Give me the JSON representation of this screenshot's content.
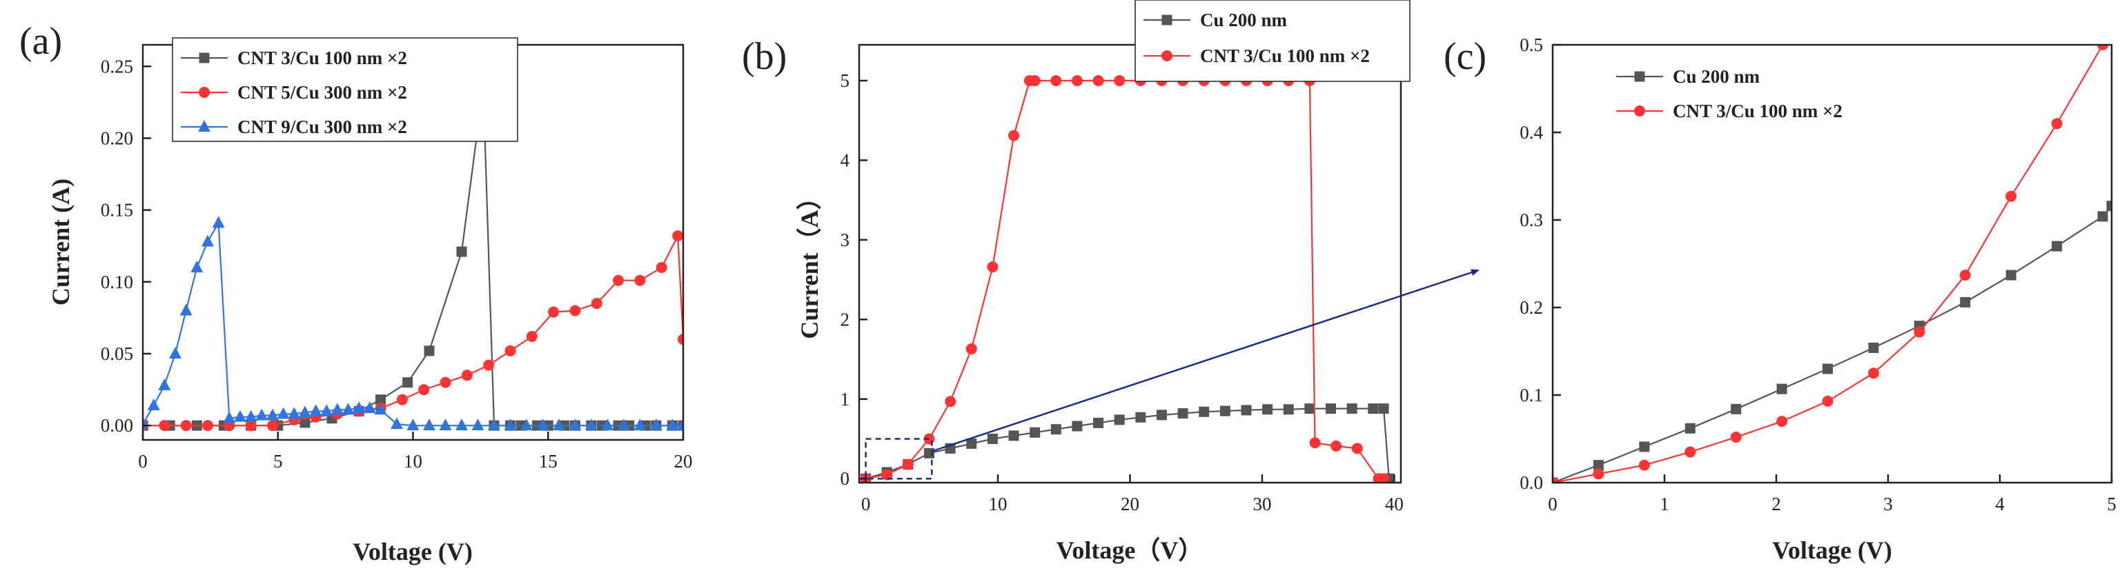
{
  "colors": {
    "gray": "#555555",
    "red": "#ff3333",
    "blue": "#2f74e0",
    "navy": "#1a2a8a",
    "axis": "#222222"
  },
  "panels": [
    {
      "label": "(a)",
      "xlabel": "Voltage (V)",
      "ylabel": "Current (A)",
      "xticks": [
        "0",
        "5",
        "10",
        "15",
        "20"
      ],
      "yticks": [
        "0.00",
        "0.05",
        "0.10",
        "0.15",
        "0.20",
        "0.25"
      ],
      "legend": [
        "CNT 3/Cu 100 nm ×2",
        "CNT 5/Cu 300 nm ×2",
        "CNT 9/Cu 300 nm ×2"
      ]
    },
    {
      "label": "(b)",
      "xlabel": "Voltage（V）",
      "ylabel": "Current（A）",
      "xticks": [
        "0",
        "10",
        "20",
        "30",
        "40"
      ],
      "yticks": [
        "0",
        "1",
        "2",
        "3",
        "4",
        "5"
      ],
      "legend": [
        "Cu 200 nm",
        "CNT 3/Cu 100 nm ×2"
      ]
    },
    {
      "label": "(c)",
      "xlabel": "Voltage (V)",
      "ylabel": "",
      "xticks": [
        "0",
        "1",
        "2",
        "3",
        "4",
        "5"
      ],
      "yticks": [
        "0.0",
        "0.1",
        "0.2",
        "0.3",
        "0.4",
        "0.5"
      ],
      "legend": [
        "Cu 200 nm",
        "CNT 3/Cu 100 nm ×2"
      ]
    }
  ],
  "chart_data": [
    {
      "type": "line",
      "title": "(a)",
      "xlabel": "Voltage (V)",
      "ylabel": "Current (A)",
      "xlim": [
        0,
        20
      ],
      "ylim": [
        -0.01,
        0.265
      ],
      "legend_position": "top-center",
      "series": [
        {
          "name": "CNT 3/Cu 100 nm ×2",
          "color": "#555555",
          "marker": "square",
          "x": [
            0,
            1,
            2,
            3,
            4,
            5,
            6,
            7,
            8,
            8.8,
            9.8,
            10.6,
            11.8,
            12.6,
            13,
            13.6,
            14,
            14.6,
            15,
            15.6,
            16,
            16.6,
            17,
            17.6,
            18,
            18.6,
            19,
            19.6,
            20
          ],
          "y": [
            0,
            0,
            0,
            0,
            0,
            0,
            0.002,
            0.005,
            0.01,
            0.018,
            0.03,
            0.052,
            0.121,
            0.236,
            0,
            0,
            0,
            0,
            0,
            0,
            0,
            0,
            0,
            0,
            0,
            0,
            0,
            0,
            0
          ]
        },
        {
          "name": "CNT 5/Cu 300 nm ×2",
          "color": "#ff3333",
          "marker": "circle",
          "x": [
            0,
            0.8,
            1.6,
            2.4,
            3.2,
            4,
            4.8,
            5.6,
            6.4,
            7.2,
            8,
            8.8,
            9.6,
            10.4,
            11.2,
            12,
            12.8,
            13.6,
            14.4,
            15.2,
            16,
            16.8,
            17.6,
            18.4,
            19.2,
            19.8,
            20
          ],
          "y": [
            0,
            0,
            0,
            0,
            0,
            0,
            0,
            0.004,
            0.006,
            0.008,
            0.01,
            0.012,
            0.018,
            0.025,
            0.03,
            0.035,
            0.042,
            0.052,
            0.062,
            0.079,
            0.08,
            0.085,
            0.101,
            0.101,
            0.11,
            0.132,
            0.06
          ]
        },
        {
          "name": "CNT 9/Cu 300 nm ×2",
          "color": "#2f74e0",
          "marker": "triangle",
          "x": [
            0,
            0.4,
            0.8,
            1.2,
            1.6,
            2,
            2.4,
            2.8,
            3.2,
            3.6,
            4,
            4.4,
            4.8,
            5.2,
            5.6,
            6,
            6.4,
            6.8,
            7.2,
            7.6,
            8,
            8.4,
            8.8,
            9.4,
            10,
            10.6,
            11.2,
            11.8,
            12.4,
            13,
            13.6,
            14.2,
            14.8,
            15.4,
            16,
            16.6,
            17.2,
            17.8,
            18.4,
            19,
            19.6,
            20
          ],
          "y": [
            0.001,
            0.014,
            0.028,
            0.05,
            0.08,
            0.11,
            0.128,
            0.141,
            0.005,
            0.006,
            0.006,
            0.007,
            0.007,
            0.008,
            0.008,
            0.009,
            0.01,
            0.01,
            0.011,
            0.011,
            0.012,
            0.012,
            0.011,
            0.001,
            0,
            0,
            0,
            0,
            0,
            0,
            0,
            0,
            0,
            0,
            0,
            0,
            0,
            0,
            0,
            0,
            0,
            0
          ]
        }
      ]
    },
    {
      "type": "line",
      "title": "(b)",
      "xlabel": "Voltage（V）",
      "ylabel": "Current（A）",
      "xlim": [
        -0.5,
        40.5
      ],
      "ylim": [
        -0.05,
        5.45
      ],
      "legend_position": "top-center",
      "series": [
        {
          "name": "Cu 200 nm",
          "color": "#555555",
          "marker": "square",
          "x": [
            0,
            1.6,
            3.2,
            4.8,
            6.4,
            8,
            9.6,
            11.2,
            12.8,
            14.4,
            16,
            17.6,
            19.2,
            20.8,
            22.4,
            24,
            25.6,
            27.2,
            28.8,
            30.4,
            32,
            33.6,
            35.2,
            36.8,
            38.4,
            39.2,
            39.6
          ],
          "y": [
            0,
            0.08,
            0.18,
            0.32,
            0.38,
            0.44,
            0.5,
            0.54,
            0.58,
            0.62,
            0.66,
            0.7,
            0.74,
            0.77,
            0.8,
            0.82,
            0.84,
            0.85,
            0.86,
            0.87,
            0.87,
            0.88,
            0.88,
            0.88,
            0.88,
            0.88,
            0
          ]
        },
        {
          "name": "CNT 3/Cu 100 nm ×2",
          "color": "#ff3333",
          "marker": "circle",
          "x": [
            0,
            1.6,
            3.2,
            4.8,
            6.4,
            8,
            9.6,
            11.2,
            12.4,
            12.8,
            14.4,
            16,
            17.6,
            19.2,
            20.8,
            22.4,
            24,
            25.6,
            27.2,
            28.8,
            30.4,
            32,
            33.6,
            34,
            35.6,
            37.2,
            38.8,
            39.2
          ],
          "y": [
            0,
            0.05,
            0.18,
            0.5,
            0.97,
            1.63,
            2.66,
            4.31,
            5,
            5,
            5,
            5,
            5,
            5,
            5,
            5,
            5,
            5,
            5,
            5,
            5,
            5,
            5,
            0.45,
            0.41,
            0.38,
            0,
            0
          ]
        }
      ]
    },
    {
      "type": "line",
      "title": "(c)",
      "xlabel": "Voltage (V)",
      "ylabel": "",
      "xlim": [
        0,
        5
      ],
      "ylim": [
        0,
        0.5
      ],
      "legend_position": "top-left",
      "series": [
        {
          "name": "Cu 200 nm",
          "color": "#555555",
          "marker": "square",
          "x": [
            0,
            0.41,
            0.82,
            1.23,
            1.64,
            2.05,
            2.46,
            2.87,
            3.28,
            3.69,
            4.1,
            4.51,
            4.92,
            5
          ],
          "y": [
            0,
            0.02,
            0.041,
            0.062,
            0.084,
            0.107,
            0.13,
            0.154,
            0.179,
            0.206,
            0.237,
            0.27,
            0.304,
            0.316
          ]
        },
        {
          "name": "CNT 3/Cu 100 nm ×2",
          "color": "#ff3333",
          "marker": "circle",
          "x": [
            0,
            0.41,
            0.82,
            1.23,
            1.64,
            2.05,
            2.46,
            2.87,
            3.28,
            3.69,
            4.1,
            4.51,
            4.92
          ],
          "y": [
            0,
            0.01,
            0.02,
            0.035,
            0.052,
            0.07,
            0.093,
            0.125,
            0.172,
            0.237,
            0.327,
            0.41,
            0.5
          ]
        }
      ]
    }
  ]
}
